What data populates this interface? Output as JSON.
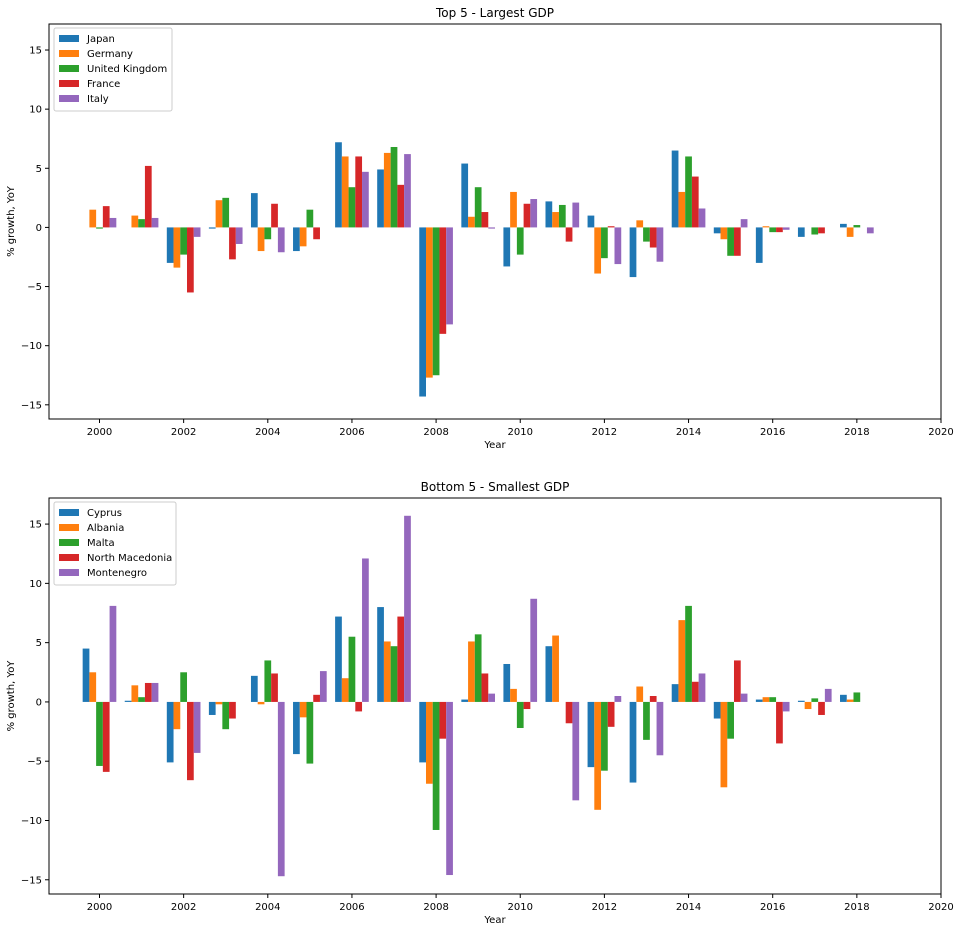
{
  "chart_data": [
    {
      "type": "bar",
      "title": "Top 5 - Largest GDP",
      "xlabel": "Year",
      "ylabel": "% growth, YoY",
      "x": [
        2000,
        2001,
        2002,
        2003,
        2004,
        2005,
        2006,
        2007,
        2008,
        2009,
        2010,
        2011,
        2012,
        2013,
        2014,
        2015,
        2016,
        2017,
        2018
      ],
      "xlim": [
        1998.8,
        2020
      ],
      "ylim": [
        -16.2,
        17.2
      ],
      "xticks": [
        2000,
        2002,
        2004,
        2006,
        2008,
        2010,
        2012,
        2014,
        2016,
        2018,
        2020
      ],
      "yticks": [
        -15,
        -10,
        -5,
        0,
        5,
        10,
        15
      ],
      "legend": "upper-left",
      "grid": false,
      "series": [
        {
          "name": "Japan",
          "color": "#1f77b4",
          "values": [
            0,
            0,
            -3.0,
            -0.1,
            2.9,
            -2.0,
            7.2,
            4.9,
            -14.3,
            5.4,
            -3.3,
            2.2,
            1.0,
            -4.2,
            6.5,
            -0.5,
            -3.0,
            -0.8,
            0.3
          ]
        },
        {
          "name": "Germany",
          "color": "#ff7f0e",
          "values": [
            1.5,
            1.0,
            -3.4,
            2.3,
            -2.0,
            -1.6,
            6.0,
            6.3,
            -12.7,
            0.9,
            3.0,
            1.3,
            -3.9,
            0.6,
            3.0,
            -1.0,
            0.1,
            0,
            -0.8
          ]
        },
        {
          "name": "United Kingdom",
          "color": "#2ca02c",
          "values": [
            -0.1,
            0.7,
            -2.3,
            2.5,
            -1.0,
            1.5,
            3.4,
            6.8,
            -12.5,
            3.4,
            -2.3,
            1.9,
            -2.6,
            -1.2,
            6.0,
            -2.4,
            -0.4,
            -0.6,
            0.2
          ]
        },
        {
          "name": "France",
          "color": "#d62728",
          "values": [
            1.8,
            5.2,
            -5.5,
            -2.7,
            2.0,
            -1.0,
            6.0,
            3.6,
            -9.0,
            1.3,
            2.0,
            -1.2,
            0.1,
            -1.7,
            4.3,
            -2.4,
            -0.4,
            -0.5,
            0
          ]
        },
        {
          "name": "Italy",
          "color": "#9467bd",
          "values": [
            0.8,
            0.8,
            -0.8,
            -1.4,
            -2.1,
            0,
            4.7,
            6.2,
            -8.2,
            -0.1,
            2.4,
            2.1,
            -3.1,
            -2.9,
            1.6,
            0.7,
            -0.2,
            0,
            -0.5
          ]
        }
      ]
    },
    {
      "type": "bar",
      "title": "Bottom 5 - Smallest GDP",
      "xlabel": "Year",
      "ylabel": "% growth, YoY",
      "x": [
        2000,
        2001,
        2002,
        2003,
        2004,
        2005,
        2006,
        2007,
        2008,
        2009,
        2010,
        2011,
        2012,
        2013,
        2014,
        2015,
        2016,
        2017,
        2018
      ],
      "xlim": [
        1998.8,
        2020
      ],
      "ylim": [
        -16.2,
        17.2
      ],
      "xticks": [
        2000,
        2002,
        2004,
        2006,
        2008,
        2010,
        2012,
        2014,
        2016,
        2018,
        2020
      ],
      "yticks": [
        -15,
        -10,
        -5,
        0,
        5,
        10,
        15
      ],
      "legend": "upper-left",
      "grid": false,
      "series": [
        {
          "name": "Cyprus",
          "color": "#1f77b4",
          "values": [
            4.5,
            0.1,
            -5.1,
            -1.1,
            2.2,
            -4.4,
            7.2,
            8.0,
            -5.1,
            0.2,
            3.2,
            4.7,
            -5.5,
            -6.8,
            1.5,
            -1.4,
            0.2,
            0.1,
            0.6
          ]
        },
        {
          "name": "Albania",
          "color": "#ff7f0e",
          "values": [
            2.5,
            1.4,
            -2.3,
            -0.2,
            -0.2,
            -1.3,
            2.0,
            5.1,
            -6.9,
            5.1,
            1.1,
            5.6,
            -9.1,
            1.3,
            6.9,
            -7.2,
            0.4,
            -0.6,
            0.2
          ]
        },
        {
          "name": "Malta",
          "color": "#2ca02c",
          "values": [
            -5.4,
            0.4,
            2.5,
            -2.3,
            3.5,
            -5.2,
            5.5,
            4.7,
            -10.8,
            5.7,
            -2.2,
            0,
            -5.8,
            -3.2,
            8.1,
            -3.1,
            0.4,
            0.3,
            0.8
          ]
        },
        {
          "name": "North Macedonia",
          "color": "#d62728",
          "values": [
            -5.9,
            1.6,
            -6.6,
            -1.4,
            2.4,
            0.6,
            -0.8,
            7.2,
            -3.1,
            2.4,
            -0.6,
            -1.8,
            -2.1,
            0.5,
            1.7,
            3.5,
            -3.5,
            -1.1,
            0
          ]
        },
        {
          "name": "Montenegro",
          "color": "#9467bd",
          "values": [
            8.1,
            1.6,
            -4.3,
            0,
            -14.7,
            2.6,
            12.1,
            15.7,
            -14.6,
            0.7,
            8.7,
            -8.3,
            0.5,
            -4.5,
            2.4,
            0.7,
            -0.8,
            1.1,
            0
          ]
        }
      ]
    }
  ]
}
